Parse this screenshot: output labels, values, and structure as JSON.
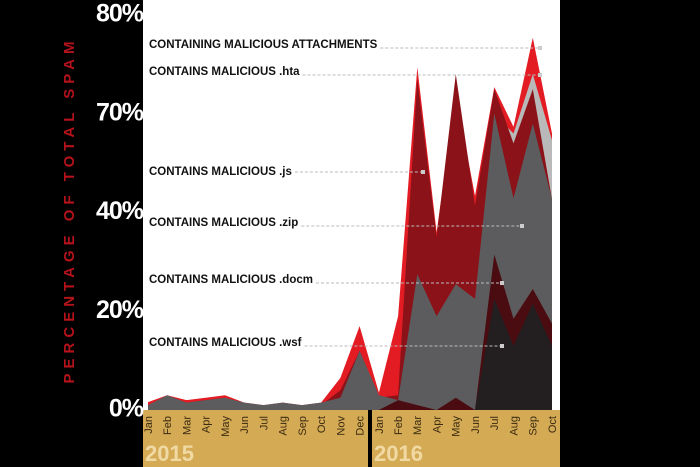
{
  "chart_data": {
    "type": "area",
    "y_label": "PERCENTAGE OF TOTAL SPAM",
    "categories": [
      "Jan",
      "Feb",
      "Mar",
      "Apr",
      "May",
      "Jun",
      "Jul",
      "Aug",
      "Sep",
      "Oct",
      "Nov",
      "Dec",
      "Jan",
      "Feb",
      "Mar",
      "Apr",
      "May",
      "Jun",
      "Jul",
      "Aug",
      "Sep",
      "Oct"
    ],
    "years": [
      "2015",
      "2016"
    ],
    "ylim": [
      0,
      80
    ],
    "yticks": [
      {
        "value": 0,
        "label": "0%"
      },
      {
        "value": 20,
        "label": "20%"
      },
      {
        "value": 40,
        "label": "40%"
      },
      {
        "value": 70,
        "label": "70%"
      },
      {
        "value": 80,
        "label": "80%"
      }
    ],
    "series": [
      {
        "name": "CONTAINING MALICIOUS ATTACHMENTS",
        "color": "#e31b23",
        "values": [
          1.6,
          3,
          2,
          2.5,
          3,
          1.5,
          1,
          1.5,
          1,
          1.5,
          6.5,
          17,
          3.5,
          19,
          74.7,
          36,
          72,
          45,
          72.7,
          66,
          77.7,
          64
        ]
      },
      {
        "name": "CONTAINS MALICIOUS .hta",
        "color": "#b9b9b9",
        "values": [
          0,
          0,
          0,
          0,
          0,
          0,
          0,
          0,
          0,
          0,
          0,
          0,
          0,
          0,
          0,
          0,
          0,
          0,
          70,
          64,
          74,
          62
        ]
      },
      {
        "name": "CONTAINS MALICIOUS .js",
        "color": "#8b1218",
        "values": [
          1,
          2.5,
          1.5,
          2,
          2.5,
          1,
          1,
          1,
          1,
          1,
          4,
          12,
          2.5,
          3,
          73.5,
          35,
          74,
          42,
          72.5,
          61,
          72.5,
          44
        ]
      },
      {
        "name": "CONTAINS MALICIOUS .zip",
        "color": "#5c5c5e",
        "values": [
          1,
          3,
          1.5,
          2,
          2.5,
          1.5,
          1,
          1.5,
          1,
          1.5,
          2.5,
          12,
          3,
          2,
          27.5,
          19,
          25.5,
          22.5,
          70,
          44.3,
          67,
          44
        ]
      },
      {
        "name": "CONTAINS MALICIOUS .docm",
        "color": "#4a0c10",
        "values": [
          0,
          0,
          0,
          0,
          0,
          0,
          0,
          0,
          0,
          0,
          0,
          0,
          0,
          2,
          1,
          0,
          2.5,
          0,
          31.5,
          18.5,
          24.5,
          17.5
        ]
      },
      {
        "name": "CONTAINS MALICIOUS .wsf",
        "color": "#231f20",
        "values": [
          0,
          0,
          0,
          0,
          0,
          0,
          0,
          0,
          0,
          0,
          0,
          0,
          0,
          0,
          0,
          0,
          0,
          0,
          22.5,
          13,
          21.5,
          13
        ]
      }
    ]
  }
}
